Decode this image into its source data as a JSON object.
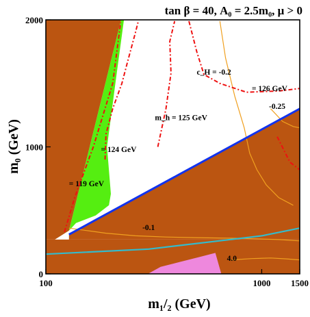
{
  "chart_data": {
    "type": "contour",
    "title": "tan β = 40, A₀ = 2.5m₀, μ > 0",
    "xlabel": "m₁/₂ (GeV)",
    "ylabel": "m₀ (GeV)",
    "x_scale": "log",
    "xlim": [
      100,
      1500
    ],
    "ylim": [
      0,
      2000
    ],
    "x_ticks": [
      "100",
      "1000",
      "1500"
    ],
    "y_ticks": [
      "0",
      "1000",
      "2000"
    ],
    "grid": false,
    "colors": {
      "excluded": "#bb5511",
      "relic_density": "#55ee11",
      "higgs_mass_contour": "#ee1111",
      "ch_contour": "#f0a020",
      "boundary_blue": "#1133ee",
      "boundary_cyan": "#33bbcc",
      "pink_region": "#ee88dd"
    },
    "regions": [
      {
        "role": "excluded-left",
        "points": [
          [
            100,
            2000
          ],
          [
            223,
            2000
          ],
          [
            128,
            340
          ],
          [
            110,
            270
          ],
          [
            100,
            270
          ]
        ]
      },
      {
        "role": "excluded-right",
        "points": [
          [
            128,
            310
          ],
          [
            1500,
            1300
          ],
          [
            1500,
            270
          ],
          [
            128,
            270
          ]
        ]
      },
      {
        "role": "excluded-bottom",
        "points": [
          [
            100,
            0
          ],
          [
            1500,
            0
          ],
          [
            1500,
            270
          ],
          [
            100,
            270
          ]
        ]
      },
      {
        "role": "relic-band",
        "points": [
          [
            128,
            340
          ],
          [
            223,
            2000
          ],
          [
            230,
            2000
          ],
          [
            210,
            1500
          ],
          [
            192,
            1000
          ],
          [
            200,
            630
          ],
          [
            196,
            540
          ],
          [
            170,
            460
          ],
          [
            138,
            400
          ]
        ]
      },
      {
        "role": "pink",
        "points": [
          [
            297,
            0
          ],
          [
            340,
            55
          ],
          [
            420,
            95
          ],
          [
            520,
            135
          ],
          [
            610,
            165
          ],
          [
            650,
            0
          ]
        ]
      }
    ],
    "higgs_mass_contours": [
      {
        "label": "= 119 GeV",
        "points": [
          [
            122,
            330
          ],
          [
            136,
            600
          ],
          [
            166,
            1000
          ],
          [
            204,
            1500
          ],
          [
            222,
            1980
          ]
        ]
      },
      {
        "label": "= 124 GeV",
        "points": [
          [
            188,
            900
          ],
          [
            190,
            1100
          ],
          [
            204,
            1300
          ],
          [
            225,
            1500
          ],
          [
            240,
            1680
          ],
          [
            260,
            1900
          ],
          [
            268,
            1990
          ]
        ]
      },
      {
        "label": "m_h = 125 GeV",
        "points": [
          [
            330,
            1000
          ],
          [
            360,
            1300
          ],
          [
            380,
            1580
          ],
          [
            375,
            1830
          ],
          [
            395,
            1990
          ]
        ]
      },
      {
        "label": "= 126 GeV",
        "points": [
          [
            460,
            1990
          ],
          [
            500,
            1750
          ],
          [
            540,
            1570
          ],
          [
            640,
            1500
          ],
          [
            850,
            1430
          ],
          [
            1200,
            1440
          ],
          [
            1500,
            1460
          ]
        ]
      },
      {
        "label": "",
        "points": [
          [
            1180,
            1080
          ],
          [
            1350,
            880
          ],
          [
            1500,
            820
          ]
        ]
      }
    ],
    "ch_contours": [
      {
        "label": "c_H = -0.2",
        "points": [
          [
            640,
            1990
          ],
          [
            680,
            1700
          ],
          [
            750,
            1400
          ],
          [
            830,
            1150
          ],
          [
            880,
            950
          ],
          [
            950,
            820
          ],
          [
            1050,
            700
          ],
          [
            1200,
            600
          ],
          [
            1400,
            540
          ]
        ]
      },
      {
        "label": "-0.25",
        "points": [
          [
            1100,
            1300
          ],
          [
            1250,
            1200
          ],
          [
            1400,
            1160
          ],
          [
            1500,
            1150
          ]
        ]
      },
      {
        "label": "-0.1",
        "points": [
          [
            128,
            360
          ],
          [
            190,
            320
          ],
          [
            260,
            300
          ],
          [
            360,
            290
          ],
          [
            500,
            285
          ],
          [
            800,
            280
          ],
          [
            1200,
            270
          ],
          [
            1500,
            260
          ]
        ]
      },
      {
        "label": "4.0",
        "points": [
          [
            720,
            110
          ],
          [
            900,
            120
          ],
          [
            1100,
            125
          ],
          [
            1300,
            118
          ],
          [
            1500,
            110
          ]
        ]
      }
    ],
    "boundaries": [
      {
        "role": "blue",
        "points": [
          [
            128,
            310
          ],
          [
            1500,
            1300
          ]
        ]
      },
      {
        "role": "cyan",
        "points": [
          [
            100,
            155
          ],
          [
            300,
            195
          ],
          [
            600,
            255
          ],
          [
            1000,
            300
          ],
          [
            1500,
            360
          ]
        ]
      }
    ],
    "annotations": [
      "c_H = -0.2",
      "= 126 GeV",
      "-0.25",
      "m_h = 125 GeV",
      "= 124 GeV",
      "= 119 GeV",
      "-0.1",
      "4.0"
    ]
  }
}
